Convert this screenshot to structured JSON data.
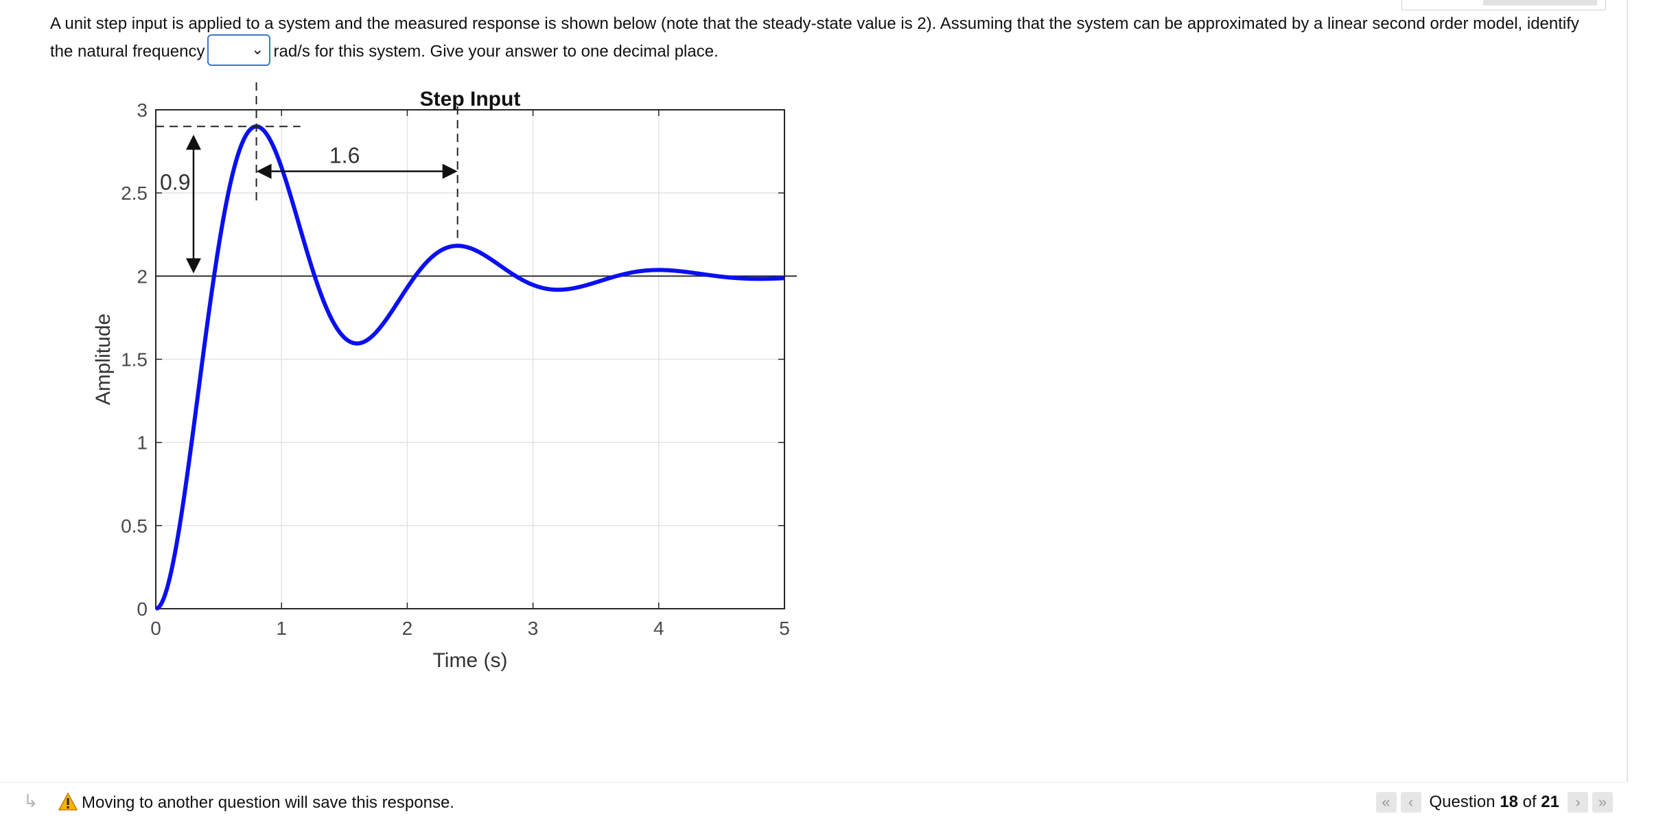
{
  "question": {
    "text_before": "A unit step input is applied to a system and the measured response is shown below (note that the steady-state value is 2). Assuming that the system can be approximated by a linear second order model, identify the natural frequency",
    "answer_value": "",
    "text_after": "rad/s for this system. Give your answer to one decimal place."
  },
  "chart_data": {
    "type": "line",
    "title": "Step Input",
    "xlabel": "Time (s)",
    "ylabel": "Amplitude",
    "xlim": [
      0,
      5
    ],
    "ylim": [
      0,
      3
    ],
    "xticks": [
      "0",
      "1",
      "2",
      "3",
      "4",
      "5"
    ],
    "yticks": [
      "0",
      "0.5",
      "1",
      "1.5",
      "2",
      "2.5",
      "3"
    ],
    "grid": true,
    "series_color": "#0a10f0",
    "steady_state": 2,
    "peak_time": 0.8,
    "peak_value": 2.9,
    "annotations": {
      "overshoot_label": "0.9",
      "period_label": "1.6"
    }
  },
  "footer": {
    "save_message": "Moving to another question will save this response.",
    "pager_prefix": "Question ",
    "current": "18",
    "pager_of": " of ",
    "total": "21"
  }
}
